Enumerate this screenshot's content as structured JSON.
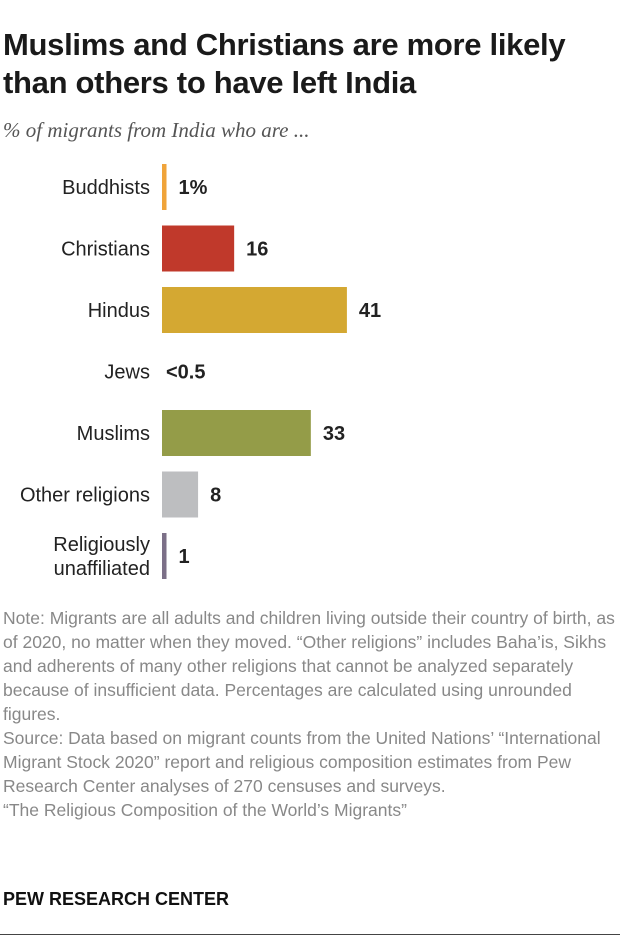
{
  "title": "Muslims and Christians are more likely than others to have left India",
  "subtitle": "% of migrants from India who are ...",
  "chart_data": {
    "type": "bar",
    "orientation": "horizontal",
    "categories": [
      [
        "Buddhists"
      ],
      [
        "Christians"
      ],
      [
        "Hindus"
      ],
      [
        "Jews"
      ],
      [
        "Muslims"
      ],
      [
        "Other religions"
      ],
      [
        "Religiously",
        "unaffiliated"
      ]
    ],
    "values": [
      1,
      16,
      41,
      0.3,
      33,
      8,
      1
    ],
    "value_labels": [
      "1%",
      "16",
      "41",
      "<0.5",
      "33",
      "8",
      "1"
    ],
    "colors": [
      "#F0A43A",
      "#C0392B",
      "#D4A832",
      "#FFFFFF",
      "#949C48",
      "#BDBEC0",
      "#7C7088"
    ],
    "xlim": [
      0,
      100
    ],
    "grid": false,
    "title": "",
    "xlabel": "",
    "ylabel": ""
  },
  "notes": {
    "note": "Note: Migrants are all adults and children living outside their country of birth, as of 2020, no matter when they moved. “Other religions” includes Baha’is, Sikhs and adherents of many other religions that cannot be analyzed separately because of insufficient data. Percentages are calculated using unrounded figures.",
    "source": "Source: Data based on migrant counts from the United Nations’ “International Migrant Stock 2020” report and religious composition estimates from Pew Research Center analyses of 270 censuses and surveys.",
    "report": "“The Religious Composition of the World’s Migrants”"
  },
  "brand": "PEW RESEARCH CENTER"
}
